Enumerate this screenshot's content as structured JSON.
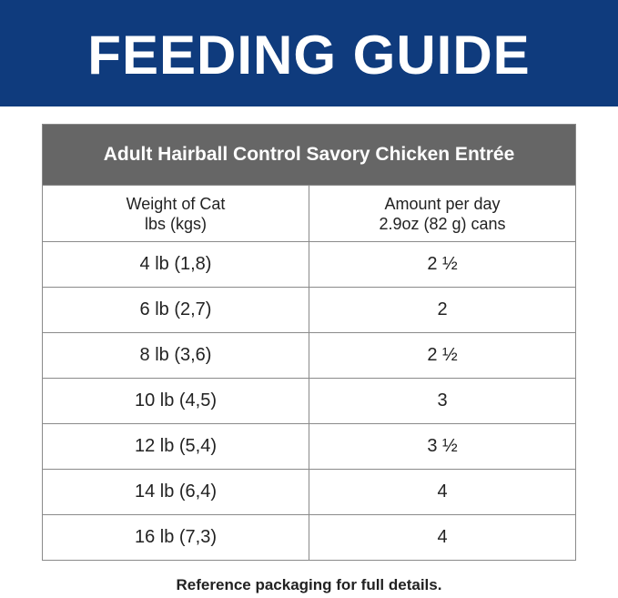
{
  "header": {
    "title": "FEEDING GUIDE"
  },
  "table": {
    "product": "Adult Hairball Control Savory Chicken Entrée",
    "columns": [
      [
        "Weight of Cat",
        "lbs (kgs)"
      ],
      [
        "Amount per day",
        "2.9oz (82 g) cans"
      ]
    ],
    "rows": [
      [
        "4 lb (1,8)",
        "2 ½"
      ],
      [
        "6 lb (2,7)",
        "2"
      ],
      [
        "8 lb (3,6)",
        "2 ½"
      ],
      [
        "10 lb (4,5)",
        "3"
      ],
      [
        "12 lb (5,4)",
        "3 ½"
      ],
      [
        "14 lb (6,4)",
        "4"
      ],
      [
        "16 lb (7,3)",
        "4"
      ]
    ]
  },
  "footer": {
    "note": "Reference packaging for full details."
  }
}
